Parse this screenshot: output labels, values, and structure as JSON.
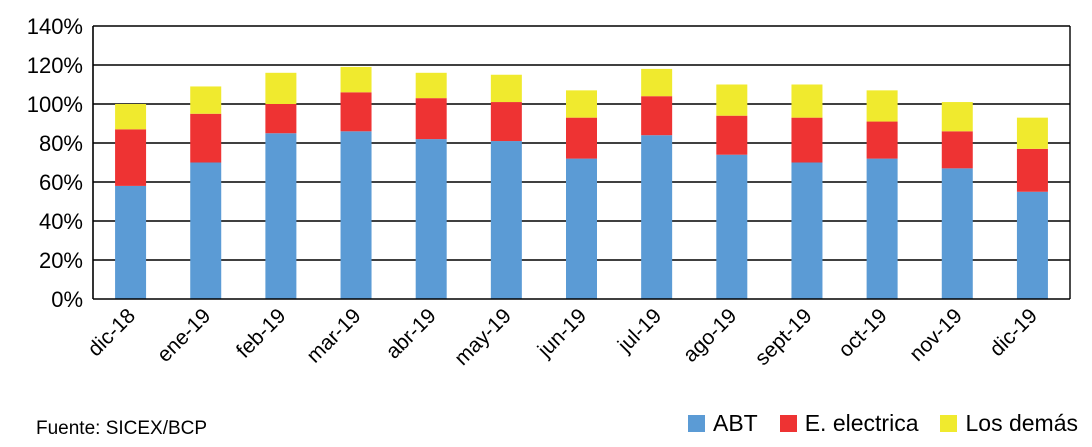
{
  "chart_data": {
    "type": "bar",
    "stacked": true,
    "title": "",
    "xlabel": "",
    "ylabel": "",
    "ylim": [
      0,
      140
    ],
    "yticks": [
      "0%",
      "20%",
      "40%",
      "60%",
      "80%",
      "100%",
      "120%",
      "140%"
    ],
    "grid": true,
    "legend_position": "bottom-right",
    "categories": [
      "dic-18",
      "ene-19",
      "feb-19",
      "mar-19",
      "abr-19",
      "may-19",
      "jun-19",
      "jul-19",
      "ago-19",
      "sept-19",
      "oct-19",
      "nov-19",
      "dic-19"
    ],
    "series": [
      {
        "name": "ABT",
        "color": "#5B9BD5",
        "values": [
          58,
          70,
          85,
          86,
          82,
          81,
          72,
          84,
          74,
          70,
          72,
          67,
          55
        ]
      },
      {
        "name": "E. electrica",
        "color": "#EE3333",
        "values": [
          29,
          25,
          15,
          20,
          21,
          20,
          21,
          20,
          20,
          23,
          19,
          19,
          22
        ]
      },
      {
        "name": "Los demás",
        "color": "#F0EA2E",
        "values": [
          13,
          14,
          16,
          13,
          13,
          14,
          14,
          14,
          16,
          17,
          16,
          15,
          16
        ]
      }
    ]
  },
  "source_note": "Fuente: SICEX/BCP"
}
